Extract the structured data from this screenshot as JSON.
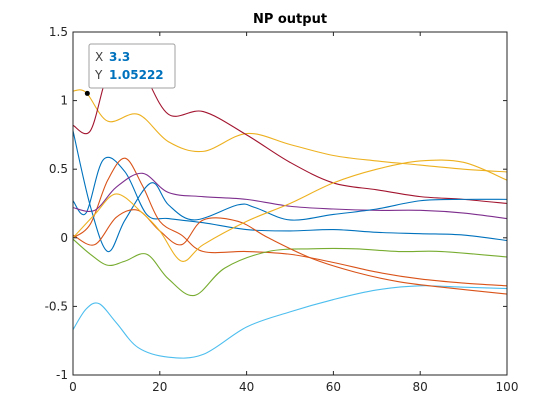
{
  "colors": {
    "axis": "#262626",
    "datatip_value": "#0072BD",
    "datatip_label": "#404040",
    "datatip_border": "#a0a0a0"
  },
  "chart_data": {
    "type": "line",
    "title": "NP output",
    "xlabel": "",
    "ylabel": "",
    "xlim": [
      0,
      100
    ],
    "ylim": [
      -1,
      1.5
    ],
    "xticks": [
      0,
      20,
      40,
      60,
      80,
      100
    ],
    "yticks": [
      -1,
      -0.5,
      0,
      0.5,
      1,
      1.5
    ],
    "xtick_labels": [
      "0",
      "20",
      "40",
      "60",
      "80",
      "100"
    ],
    "ytick_labels": [
      "-1",
      "-0.5",
      "0",
      "0.5",
      "1",
      "1.5"
    ],
    "grid": false,
    "legend": "none",
    "series": [
      {
        "color": "#0072BD",
        "x": [
          0,
          3,
          7,
          12,
          17,
          22,
          30,
          40,
          50,
          60,
          70,
          80,
          90,
          100
        ],
        "y": [
          0.27,
          0.18,
          0.57,
          0.48,
          0.17,
          0.14,
          0.11,
          0.06,
          0.05,
          0.06,
          0.04,
          0.03,
          0.02,
          -0.02
        ]
      },
      {
        "color": "#D95319",
        "x": [
          0,
          4,
          8,
          12,
          16,
          20,
          25,
          30,
          40,
          50,
          60,
          70,
          80,
          90,
          100
        ],
        "y": [
          0.0,
          0.1,
          0.42,
          0.58,
          0.38,
          0.12,
          0.02,
          -0.1,
          -0.1,
          -0.12,
          -0.18,
          -0.25,
          -0.3,
          -0.33,
          -0.35
        ]
      },
      {
        "color": "#EDB120",
        "x": [
          0,
          3,
          8,
          15,
          22,
          30,
          40,
          50,
          60,
          70,
          80,
          90,
          100
        ],
        "y": [
          1.07,
          1.06,
          0.85,
          0.9,
          0.7,
          0.63,
          0.76,
          0.68,
          0.6,
          0.56,
          0.53,
          0.5,
          0.48
        ]
      },
      {
        "color": "#7E2F8E",
        "x": [
          0,
          5,
          10,
          16,
          22,
          30,
          40,
          50,
          60,
          70,
          80,
          90,
          100
        ],
        "y": [
          0.22,
          0.2,
          0.37,
          0.47,
          0.33,
          0.3,
          0.28,
          0.23,
          0.21,
          0.2,
          0.2,
          0.18,
          0.14
        ]
      },
      {
        "color": "#77AC30",
        "x": [
          0,
          4,
          8,
          12,
          17,
          22,
          28,
          35,
          45,
          55,
          65,
          75,
          85,
          100
        ],
        "y": [
          -0.01,
          -0.12,
          -0.2,
          -0.17,
          -0.12,
          -0.3,
          -0.42,
          -0.22,
          -0.1,
          -0.08,
          -0.08,
          -0.1,
          -0.1,
          -0.14
        ]
      },
      {
        "color": "#4DBEEE",
        "x": [
          0,
          3,
          6,
          10,
          15,
          22,
          30,
          40,
          50,
          60,
          70,
          80,
          90,
          100
        ],
        "y": [
          -0.67,
          -0.52,
          -0.48,
          -0.62,
          -0.8,
          -0.87,
          -0.85,
          -0.65,
          -0.54,
          -0.45,
          -0.38,
          -0.35,
          -0.36,
          -0.37
        ]
      },
      {
        "color": "#A2142F",
        "x": [
          0,
          4,
          8,
          12,
          16,
          22,
          30,
          40,
          50,
          60,
          70,
          80,
          90,
          100
        ],
        "y": [
          0.82,
          0.78,
          1.2,
          1.35,
          1.22,
          0.9,
          0.92,
          0.75,
          0.55,
          0.4,
          0.35,
          0.3,
          0.28,
          0.25
        ]
      },
      {
        "color": "#0072BD",
        "x": [
          0,
          4,
          8,
          12,
          18,
          22,
          28,
          38,
          42,
          50,
          60,
          70,
          80,
          90,
          100
        ],
        "y": [
          0.78,
          0.23,
          -0.1,
          0.13,
          0.4,
          0.24,
          0.13,
          0.24,
          0.22,
          0.13,
          0.17,
          0.21,
          0.27,
          0.28,
          0.28
        ]
      },
      {
        "color": "#D95319",
        "x": [
          0,
          5,
          10,
          15,
          20,
          25,
          30,
          38,
          45,
          55,
          65,
          75,
          85,
          100
        ],
        "y": [
          0.02,
          -0.05,
          0.15,
          0.2,
          0.05,
          -0.05,
          0.13,
          0.12,
          0.0,
          -0.15,
          -0.25,
          -0.32,
          -0.36,
          -0.41
        ]
      },
      {
        "color": "#EDB120",
        "x": [
          0,
          5,
          10,
          16,
          20,
          25,
          30,
          40,
          50,
          60,
          70,
          80,
          90,
          100
        ],
        "y": [
          0.0,
          0.17,
          0.32,
          0.18,
          0.05,
          -0.17,
          -0.05,
          0.12,
          0.25,
          0.4,
          0.5,
          0.56,
          0.55,
          0.42
        ]
      }
    ],
    "datatip": {
      "x": 3.3,
      "y": 1.05222,
      "x_label": "X",
      "y_label": "Y",
      "x_text": "3.3",
      "y_text": "1.05222"
    }
  }
}
